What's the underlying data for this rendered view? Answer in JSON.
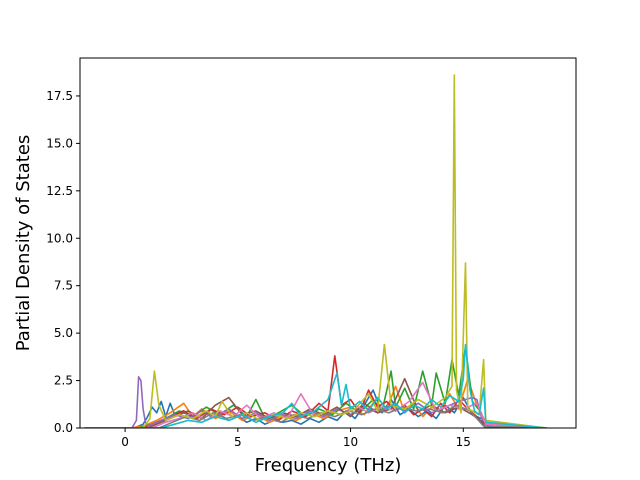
{
  "chart_data": {
    "type": "line",
    "title": "",
    "xlabel": "Frequency (THz)",
    "ylabel": "Partial Density of States",
    "xlim": [
      -2.0,
      20.0
    ],
    "ylim": [
      0.0,
      19.5
    ],
    "xticks": [
      0,
      5,
      10,
      15
    ],
    "xtick_labels": [
      "0",
      "5",
      "10",
      "15"
    ],
    "yticks": [
      0.0,
      2.5,
      5.0,
      7.5,
      10.0,
      12.5,
      15.0,
      17.5
    ],
    "ytick_labels": [
      "0.0",
      "2.5",
      "5.0",
      "7.5",
      "10.0",
      "12.5",
      "15.0",
      "17.5"
    ],
    "grid": false,
    "legend": "none",
    "series": [
      {
        "color": "#1f77b4",
        "x": [
          -1.8,
          0.0,
          0.4,
          0.8,
          1.0,
          1.2,
          1.4,
          1.6,
          1.8,
          2.0,
          2.2,
          2.6,
          3.0,
          3.4,
          3.8,
          4.2,
          4.6,
          5.0,
          5.4,
          5.8,
          6.2,
          6.6,
          7.0,
          7.4,
          7.8,
          8.2,
          8.6,
          9.0,
          9.4,
          9.8,
          10.2,
          10.6,
          11.0,
          11.4,
          11.8,
          12.2,
          12.6,
          13.0,
          13.4,
          13.8,
          14.2,
          14.6,
          15.0,
          15.4,
          15.8,
          16.2,
          18.7
        ],
        "y": [
          0,
          0,
          0,
          0.2,
          0.6,
          1.1,
          0.8,
          1.4,
          0.6,
          1.3,
          0.7,
          0.9,
          0.5,
          1.0,
          0.6,
          0.7,
          0.4,
          0.6,
          0.3,
          0.5,
          0.2,
          0.4,
          0.3,
          0.4,
          0.2,
          0.5,
          0.3,
          0.6,
          0.4,
          0.9,
          0.5,
          1.2,
          2.0,
          0.8,
          1.5,
          0.7,
          1.0,
          0.6,
          0.9,
          0.5,
          1.2,
          0.8,
          1.6,
          0.7,
          0.5,
          0,
          0
        ]
      },
      {
        "color": "#ff7f0e",
        "x": [
          -1.8,
          0.2,
          0.8,
          1.4,
          2.0,
          2.6,
          3.0,
          3.4,
          4.0,
          4.6,
          5.2,
          5.8,
          6.4,
          7.0,
          7.6,
          8.2,
          8.8,
          9.4,
          10.0,
          10.6,
          11.2,
          11.6,
          12.0,
          12.4,
          12.8,
          13.2,
          13.6,
          14.0,
          14.4,
          14.8,
          15.2,
          15.6,
          16.0,
          18.7
        ],
        "y": [
          0,
          0,
          0.1,
          0.4,
          0.8,
          1.3,
          0.6,
          1.0,
          0.5,
          0.9,
          0.4,
          0.7,
          0.3,
          0.6,
          0.4,
          0.8,
          0.5,
          0.9,
          1.1,
          0.7,
          1.6,
          1.0,
          2.2,
          0.8,
          1.3,
          0.6,
          1.1,
          0.9,
          1.8,
          1.0,
          2.6,
          1.2,
          0.3,
          0
        ]
      },
      {
        "color": "#2ca02c",
        "x": [
          -1.8,
          0.6,
          1.2,
          1.8,
          2.4,
          3.0,
          3.6,
          4.2,
          4.8,
          5.4,
          5.8,
          6.2,
          6.8,
          7.4,
          8.0,
          8.6,
          9.2,
          9.8,
          10.4,
          11.0,
          11.4,
          11.8,
          12.0,
          12.4,
          12.8,
          13.2,
          13.6,
          13.8,
          14.2,
          14.5,
          14.8,
          15.1,
          15.4,
          15.8,
          16.0,
          18.7
        ],
        "y": [
          0,
          0,
          0.2,
          0.5,
          0.9,
          0.6,
          1.1,
          0.7,
          1.2,
          0.6,
          1.5,
          0.5,
          0.8,
          1.2,
          0.6,
          1.0,
          0.7,
          1.3,
          0.8,
          1.5,
          0.9,
          3.0,
          1.1,
          2.1,
          1.0,
          3.0,
          1.2,
          2.9,
          1.3,
          3.6,
          1.7,
          4.3,
          1.4,
          0.8,
          0,
          0
        ]
      },
      {
        "color": "#d62728",
        "x": [
          -1.8,
          0.8,
          1.4,
          2.0,
          2.6,
          3.2,
          3.8,
          4.4,
          5.0,
          5.6,
          6.2,
          6.8,
          7.4,
          8.0,
          8.6,
          9.0,
          9.3,
          9.6,
          10.0,
          10.4,
          10.8,
          11.2,
          11.6,
          12.0,
          12.4,
          12.8,
          13.2,
          13.6,
          14.0,
          14.4,
          14.8,
          15.2,
          15.6,
          16.0,
          18.7
        ],
        "y": [
          0,
          0,
          0.3,
          0.6,
          0.9,
          0.5,
          1.0,
          0.7,
          1.1,
          0.6,
          0.8,
          0.4,
          0.9,
          0.6,
          1.3,
          0.9,
          3.8,
          1.2,
          1.5,
          0.8,
          2.0,
          1.1,
          1.4,
          0.9,
          1.2,
          0.7,
          1.0,
          0.6,
          1.3,
          0.8,
          1.5,
          1.0,
          0.6,
          0,
          0
        ]
      },
      {
        "color": "#9467bd",
        "x": [
          -1.8,
          0.3,
          0.5,
          0.6,
          0.7,
          0.8,
          0.9,
          1.0,
          1.6,
          2.2,
          2.8,
          3.4,
          4.0,
          4.6,
          5.2,
          5.8,
          6.4,
          7.0,
          7.6,
          8.2,
          8.8,
          9.4,
          10.0,
          10.6,
          11.2,
          11.8,
          12.4,
          13.0,
          13.6,
          14.2,
          14.8,
          15.4,
          15.6,
          15.8,
          16.0,
          18.7
        ],
        "y": [
          0,
          0,
          0.4,
          2.7,
          2.5,
          1.0,
          0.3,
          0.1,
          0.4,
          0.7,
          0.5,
          0.9,
          0.6,
          1.0,
          0.5,
          0.8,
          0.4,
          0.7,
          0.5,
          0.9,
          0.6,
          1.0,
          0.7,
          1.1,
          0.8,
          1.2,
          0.9,
          1.3,
          0.8,
          1.1,
          1.4,
          1.6,
          1.5,
          0.6,
          0,
          0
        ]
      },
      {
        "color": "#8c564b",
        "x": [
          -1.8,
          1.0,
          1.6,
          2.2,
          2.8,
          3.4,
          4.0,
          4.6,
          5.2,
          5.8,
          6.4,
          7.0,
          7.6,
          8.2,
          8.8,
          9.4,
          10.0,
          10.6,
          11.2,
          11.8,
          12.4,
          13.0,
          13.6,
          14.2,
          14.8,
          15.4,
          16.0,
          18.7
        ],
        "y": [
          0,
          0,
          0.3,
          0.6,
          0.9,
          0.5,
          1.2,
          1.6,
          0.7,
          0.9,
          0.5,
          0.8,
          0.6,
          1.0,
          0.7,
          1.1,
          0.6,
          1.3,
          0.8,
          1.0,
          2.6,
          0.9,
          1.2,
          0.8,
          1.1,
          0.7,
          0.2,
          0
        ]
      },
      {
        "color": "#e377c2",
        "x": [
          -1.8,
          1.2,
          1.8,
          2.4,
          3.0,
          3.6,
          4.2,
          4.8,
          5.4,
          6.0,
          6.6,
          7.2,
          7.8,
          8.4,
          9.0,
          9.6,
          10.2,
          10.8,
          11.4,
          12.0,
          12.6,
          13.2,
          13.8,
          14.4,
          15.0,
          15.6,
          16.0,
          18.7
        ],
        "y": [
          0,
          0,
          0.3,
          0.5,
          0.8,
          0.4,
          0.9,
          0.6,
          1.2,
          0.5,
          0.8,
          0.5,
          1.8,
          0.6,
          0.9,
          0.7,
          1.2,
          0.8,
          1.1,
          0.9,
          1.4,
          2.4,
          0.9,
          1.2,
          1.0,
          1.3,
          0.2,
          0
        ]
      },
      {
        "color": "#7f7f7f",
        "x": [
          -1.8,
          1.5,
          2.1,
          2.7,
          3.3,
          3.9,
          4.5,
          5.1,
          5.7,
          6.3,
          6.9,
          7.5,
          8.1,
          8.7,
          9.3,
          9.9,
          10.5,
          11.1,
          11.7,
          12.3,
          12.9,
          13.5,
          14.1,
          14.7,
          15.3,
          15.9,
          18.7
        ],
        "y": [
          0,
          0,
          0.3,
          0.6,
          0.4,
          0.8,
          0.5,
          0.7,
          0.4,
          0.6,
          0.3,
          0.7,
          0.5,
          0.8,
          0.6,
          0.9,
          0.7,
          1.0,
          0.8,
          1.1,
          0.9,
          1.0,
          0.8,
          1.2,
          0.9,
          0.1,
          0
        ]
      },
      {
        "color": "#bcbd22",
        "x": [
          -1.8,
          0.8,
          1.1,
          1.3,
          1.5,
          1.8,
          2.4,
          3.0,
          3.6,
          4.0,
          4.3,
          4.8,
          5.4,
          6.0,
          6.6,
          7.2,
          7.8,
          8.4,
          9.0,
          9.6,
          10.2,
          10.8,
          11.2,
          11.5,
          11.8,
          12.4,
          13.0,
          13.6,
          14.2,
          14.5,
          14.6,
          14.7,
          14.9,
          15.1,
          15.2,
          15.4,
          15.7,
          15.9,
          16.0,
          18.7
        ],
        "y": [
          0,
          0,
          0.5,
          3.0,
          1.2,
          0.4,
          0.7,
          0.5,
          0.9,
          0.6,
          1.4,
          0.5,
          0.8,
          0.4,
          0.7,
          0.5,
          0.8,
          0.6,
          0.9,
          0.7,
          1.0,
          1.8,
          0.9,
          4.4,
          1.2,
          1.0,
          1.5,
          1.1,
          1.6,
          2.2,
          18.6,
          2.0,
          0.8,
          8.7,
          1.0,
          0.9,
          0.7,
          3.6,
          0.4,
          0
        ]
      },
      {
        "color": "#17becf",
        "x": [
          -1.8,
          1.6,
          2.2,
          2.8,
          3.4,
          4.0,
          4.6,
          5.2,
          5.8,
          6.4,
          7.0,
          7.4,
          7.8,
          8.4,
          9.0,
          9.4,
          9.6,
          9.8,
          10.0,
          10.4,
          10.8,
          11.2,
          11.6,
          12.0,
          12.4,
          12.8,
          13.2,
          13.6,
          14.0,
          14.4,
          14.8,
          15.0,
          15.1,
          15.3,
          15.5,
          15.7,
          15.9,
          16.0,
          18.7
        ],
        "y": [
          0,
          0,
          0.2,
          0.4,
          0.3,
          0.6,
          0.4,
          0.7,
          0.3,
          0.6,
          0.8,
          1.3,
          0.6,
          0.9,
          1.5,
          2.9,
          1.2,
          2.3,
          1.0,
          1.4,
          0.9,
          1.6,
          1.0,
          1.3,
          0.8,
          1.2,
          1.0,
          1.5,
          1.1,
          1.7,
          1.4,
          2.6,
          4.4,
          2.0,
          0.9,
          0.7,
          2.1,
          0.3,
          0
        ]
      }
    ]
  }
}
